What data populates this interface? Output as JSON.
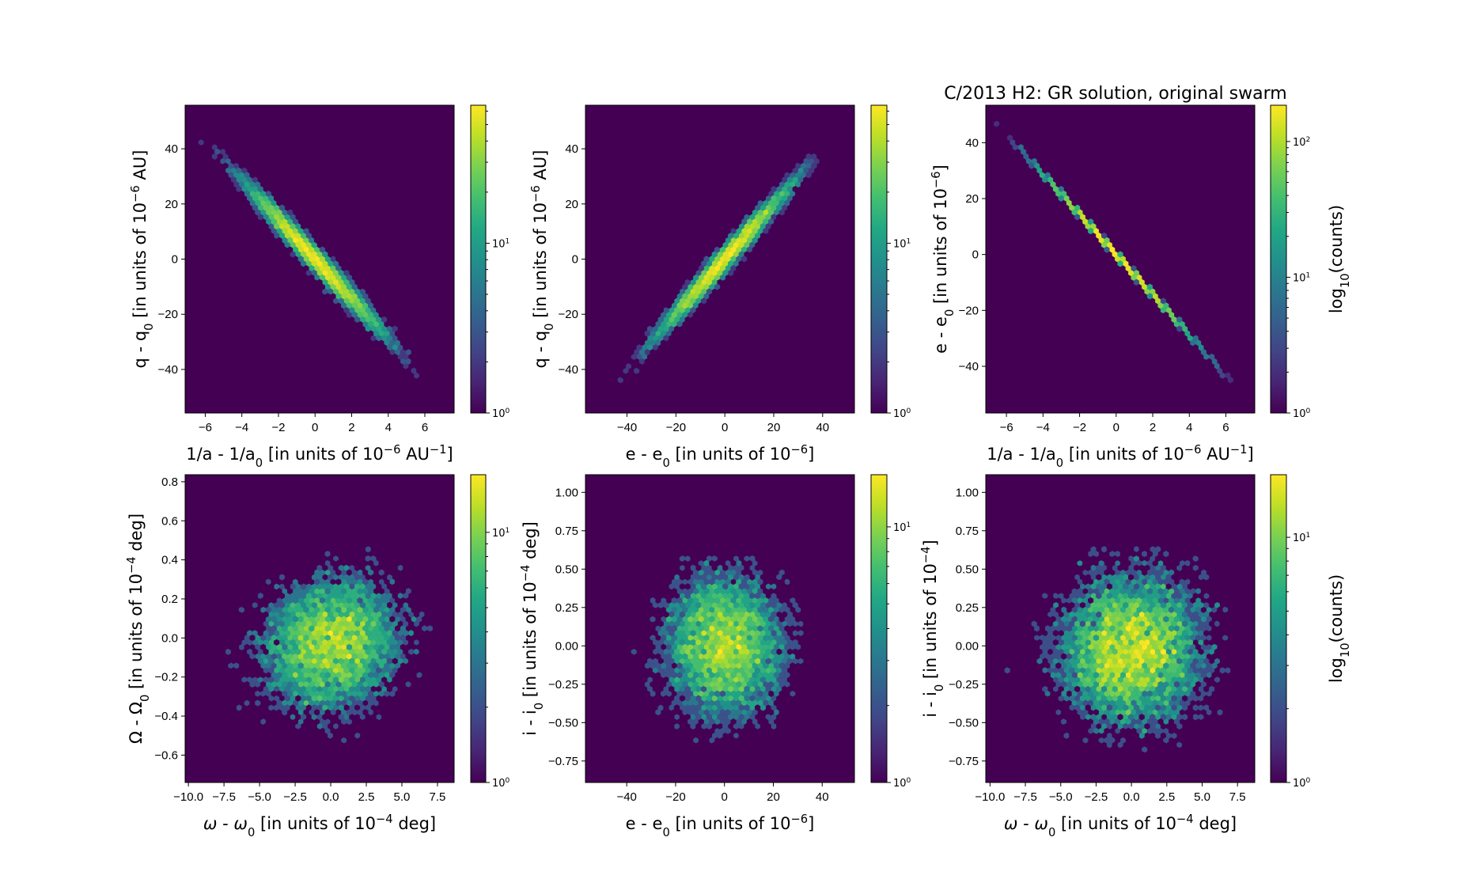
{
  "title": "C/2013 H2:  GR solution, original swarm",
  "colors": {
    "empty_bin": "#440154",
    "colormap": "viridis",
    "axes_edge": "#000000"
  },
  "chart_data": [
    {
      "type": "hexbin",
      "panel": "top-left",
      "xlabel": [
        [
          "1/a - 1/a",
          ""
        ],
        [
          "0",
          "sub"
        ],
        [
          " [in units of 10",
          ""
        ],
        [
          "−6",
          "sup"
        ],
        [
          " AU",
          ""
        ],
        [
          "−1",
          "sup"
        ],
        [
          "]",
          ""
        ]
      ],
      "ylabel": [
        [
          "q - q",
          ""
        ],
        [
          "0",
          "sub"
        ],
        [
          " [in units of 10",
          ""
        ],
        [
          "−6",
          "sup"
        ],
        [
          " AU]",
          ""
        ]
      ],
      "xlim": [
        -7.1,
        7.6
      ],
      "ylim": [
        -55.8,
        55.8
      ],
      "xticks": [
        -6,
        -4,
        -2,
        0,
        2,
        4,
        6
      ],
      "xticklabels": [
        "−6",
        "−4",
        "−2",
        "0",
        "2",
        "4",
        "6"
      ],
      "yticks": [
        -40,
        -20,
        0,
        20,
        40
      ],
      "yticklabels": [
        "−40",
        "−20",
        "0",
        "20",
        "40"
      ],
      "distribution": {
        "x_mean": 0,
        "x_sd": 2.0,
        "y_mean": 0,
        "y_sd": 14.5,
        "correlation": -0.985
      },
      "colorbar": {
        "scale": "log",
        "range": [
          1,
          65
        ],
        "ticklabels": [
          [
            "10",
            "0"
          ],
          [
            "10",
            "1"
          ]
        ],
        "label": null
      }
    },
    {
      "type": "hexbin",
      "panel": "top-center",
      "xlabel": [
        [
          "e - e",
          ""
        ],
        [
          "0",
          "sub"
        ],
        [
          " [in units of 10",
          ""
        ],
        [
          "−6",
          "sup"
        ],
        [
          "]",
          ""
        ]
      ],
      "ylabel": [
        [
          "q - q",
          ""
        ],
        [
          "0",
          "sub"
        ],
        [
          " [in units of 10",
          ""
        ],
        [
          "−6",
          "sup"
        ],
        [
          " AU]",
          ""
        ]
      ],
      "xlim": [
        -57,
        53
      ],
      "ylim": [
        -55.8,
        55.8
      ],
      "xticks": [
        -40,
        -20,
        0,
        20,
        40
      ],
      "xticklabels": [
        "−40",
        "−20",
        "0",
        "20",
        "40"
      ],
      "yticks": [
        -40,
        -20,
        0,
        20,
        40
      ],
      "yticklabels": [
        "−40",
        "−20",
        "0",
        "20",
        "40"
      ],
      "distribution": {
        "x_mean": 0,
        "x_sd": 14.5,
        "y_mean": 0,
        "y_sd": 14.5,
        "correlation": 0.985
      },
      "colorbar": {
        "scale": "log",
        "range": [
          1,
          65
        ],
        "ticklabels": [
          [
            "10",
            "0"
          ],
          [
            "10",
            "1"
          ]
        ],
        "label": null
      }
    },
    {
      "type": "hexbin",
      "panel": "top-right",
      "xlabel": [
        [
          "1/a - 1/a",
          ""
        ],
        [
          "0",
          "sub"
        ],
        [
          " [in units of 10",
          ""
        ],
        [
          "−6",
          "sup"
        ],
        [
          " AU",
          ""
        ],
        [
          "−1",
          "sup"
        ],
        [
          "]",
          ""
        ]
      ],
      "ylabel": [
        [
          "e - e",
          ""
        ],
        [
          "0",
          "sub"
        ],
        [
          " [in units of 10",
          ""
        ],
        [
          "−6",
          "sup"
        ],
        [
          "]",
          ""
        ]
      ],
      "xlim": [
        -7.13,
        7.58
      ],
      "ylim": [
        -56.7,
        53.4
      ],
      "xticks": [
        -6,
        -4,
        -2,
        0,
        2,
        4,
        6
      ],
      "xticklabels": [
        "−6",
        "−4",
        "−2",
        "0",
        "2",
        "4",
        "6"
      ],
      "yticks": [
        -40,
        -20,
        0,
        20,
        40
      ],
      "yticklabels": [
        "−40",
        "−20",
        "0",
        "20",
        "40"
      ],
      "distribution": {
        "x_mean": 0,
        "x_sd": 2.0,
        "y_mean": 0,
        "y_sd": 14.4,
        "correlation": -0.9998
      },
      "colorbar": {
        "scale": "log",
        "range": [
          1,
          185
        ],
        "ticklabels": [
          [
            "10",
            "0"
          ],
          [
            "10",
            "1"
          ],
          [
            "10",
            "2"
          ]
        ],
        "label": [
          [
            "log",
            ""
          ],
          [
            "10",
            "sub"
          ],
          [
            "(counts)",
            ""
          ]
        ]
      }
    },
    {
      "type": "hexbin",
      "panel": "bottom-left",
      "xlabel": [
        [
          "ω",
          "it"
        ],
        [
          " - ",
          ""
        ],
        [
          "ω",
          "it"
        ],
        [
          "0",
          "sub"
        ],
        [
          " [in units of 10",
          ""
        ],
        [
          "−4",
          "sup"
        ],
        [
          " deg]",
          ""
        ]
      ],
      "ylabel": [
        [
          "Ω - Ω",
          ""
        ],
        [
          "0",
          "sub"
        ],
        [
          " [in units of 10",
          ""
        ],
        [
          "−4",
          "sup"
        ],
        [
          " deg]",
          ""
        ]
      ],
      "xlim": [
        -10.23,
        8.67
      ],
      "ylim": [
        -0.74,
        0.836
      ],
      "xticks": [
        -10,
        -7.5,
        -5,
        -2.5,
        0,
        2.5,
        5,
        7.5
      ],
      "xticklabels": [
        "−10.0",
        "−7.5",
        "−5.0",
        "−2.5",
        "0.0",
        "2.5",
        "5.0",
        "7.5"
      ],
      "yticks": [
        -0.6,
        -0.4,
        -0.2,
        0,
        0.2,
        0.4,
        0.6,
        0.8
      ],
      "yticklabels": [
        "−0.6",
        "−0.4",
        "−0.2",
        "0.0",
        "0.2",
        "0.4",
        "0.6",
        "0.8"
      ],
      "distribution": {
        "x_mean": 0,
        "x_sd": 2.8,
        "y_mean": -0.03,
        "y_sd": 0.2,
        "correlation": 0.15
      },
      "colorbar": {
        "scale": "log",
        "range": [
          1,
          17
        ],
        "ticklabels": [
          [
            "10",
            "0"
          ],
          [
            "10",
            "1"
          ]
        ],
        "label": null
      }
    },
    {
      "type": "hexbin",
      "panel": "bottom-center",
      "xlabel": [
        [
          "e - e",
          ""
        ],
        [
          "0",
          "sub"
        ],
        [
          " [in units of 10",
          ""
        ],
        [
          "−6",
          "sup"
        ],
        [
          "]",
          ""
        ]
      ],
      "ylabel": [
        [
          "i - i",
          ""
        ],
        [
          "0",
          "sub"
        ],
        [
          " [in units of 10",
          ""
        ],
        [
          "−4",
          "sup"
        ],
        [
          " deg]",
          ""
        ]
      ],
      "xlim": [
        -56.9,
        53.2
      ],
      "ylim": [
        -0.89,
        1.115
      ],
      "xticks": [
        -40,
        -20,
        0,
        20,
        40
      ],
      "xticklabels": [
        "−40",
        "−20",
        "0",
        "20",
        "40"
      ],
      "yticks": [
        -0.75,
        -0.5,
        -0.25,
        0,
        0.25,
        0.5,
        0.75,
        1.0
      ],
      "yticklabels": [
        "−0.75",
        "−0.50",
        "−0.25",
        "0.00",
        "0.25",
        "0.50",
        "0.75",
        "1.00"
      ],
      "distribution": {
        "x_mean": 0,
        "x_sd": 14,
        "y_mean": 0,
        "y_sd": 0.27,
        "correlation": 0.0
      },
      "colorbar": {
        "scale": "log",
        "range": [
          1,
          16
        ],
        "ticklabels": [
          [
            "10",
            "0"
          ],
          [
            "10",
            "1"
          ]
        ],
        "label": null
      }
    },
    {
      "type": "hexbin",
      "panel": "bottom-right",
      "xlabel": [
        [
          "ω",
          "it"
        ],
        [
          " - ",
          ""
        ],
        [
          "ω",
          "it"
        ],
        [
          "0",
          "sub"
        ],
        [
          " [in units of 10",
          ""
        ],
        [
          "−4",
          "sup"
        ],
        [
          " deg]",
          ""
        ]
      ],
      "ylabel": [
        [
          "i - i",
          ""
        ],
        [
          "0",
          "sub"
        ],
        [
          " [in units of 10",
          ""
        ],
        [
          "−4",
          "sup"
        ],
        [
          "]",
          ""
        ]
      ],
      "xlim": [
        -10.3,
        8.72
      ],
      "ylim": [
        -0.89,
        1.115
      ],
      "xticks": [
        -10,
        -7.5,
        -5,
        -2.5,
        0,
        2.5,
        5,
        7.5
      ],
      "xticklabels": [
        "−10.0",
        "−7.5",
        "−5.0",
        "−2.5",
        "0.0",
        "2.5",
        "5.0",
        "7.5"
      ],
      "yticks": [
        -0.75,
        -0.5,
        -0.25,
        0,
        0.25,
        0.5,
        0.75,
        1.0
      ],
      "yticklabels": [
        "−0.75",
        "−0.50",
        "−0.25",
        "0.00",
        "0.25",
        "0.50",
        "0.75",
        "1.00"
      ],
      "distribution": {
        "x_mean": 0,
        "x_sd": 2.8,
        "y_mean": -0.02,
        "y_sd": 0.27,
        "correlation": 0.05
      },
      "colorbar": {
        "scale": "log",
        "range": [
          1,
          18
        ],
        "ticklabels": [
          [
            "10",
            "0"
          ],
          [
            "10",
            "1"
          ]
        ],
        "label": [
          [
            "log",
            ""
          ],
          [
            "10",
            "sub"
          ],
          [
            "(counts)",
            ""
          ]
        ]
      }
    }
  ]
}
